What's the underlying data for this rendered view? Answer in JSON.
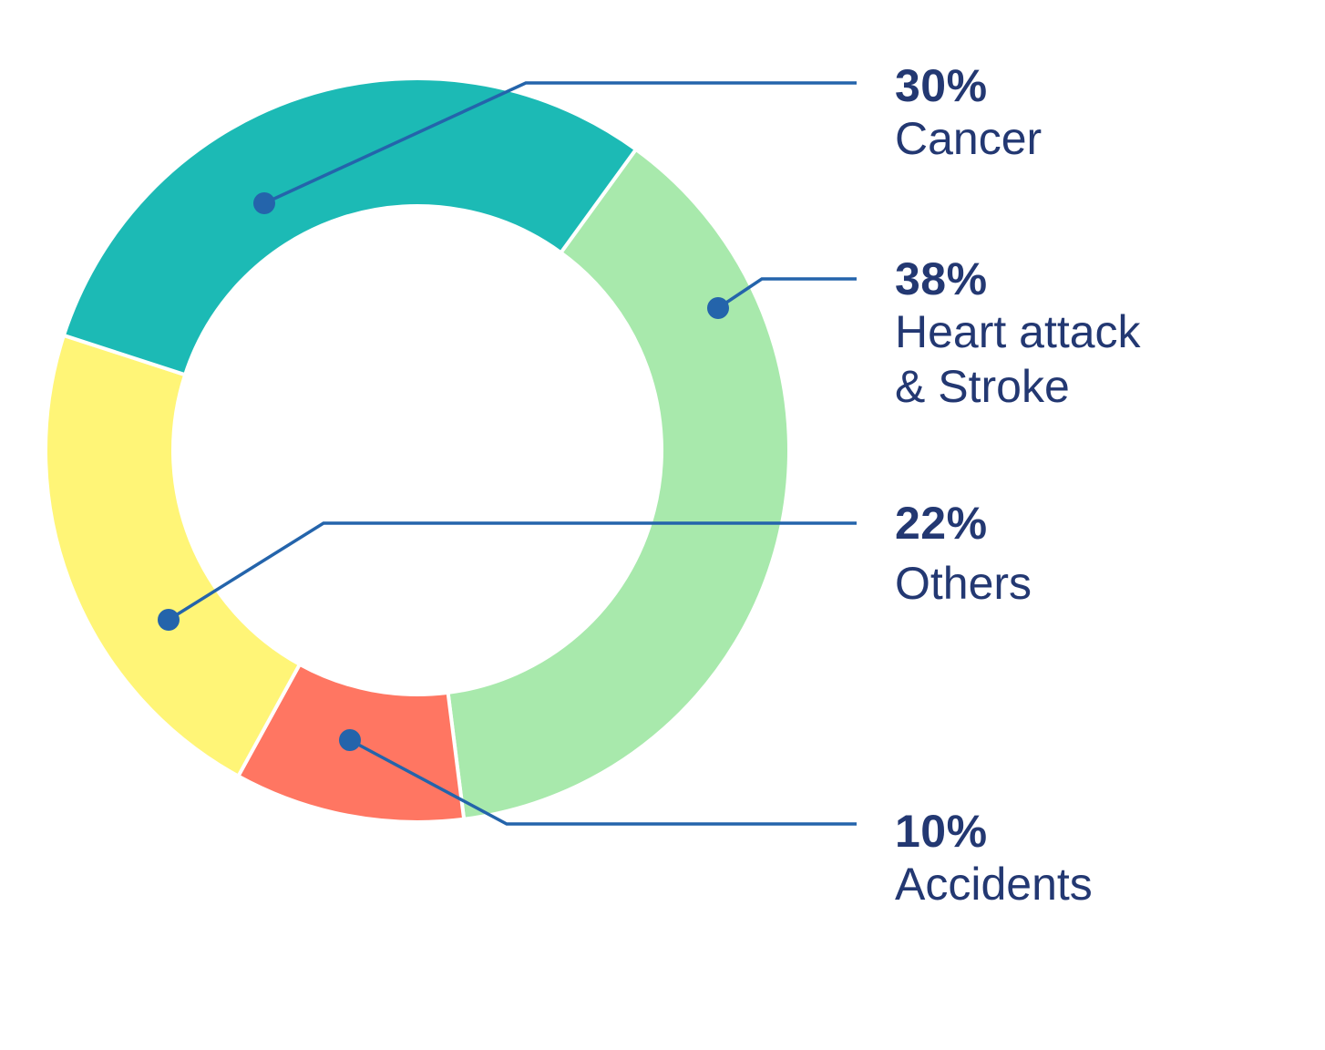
{
  "chart_data": {
    "type": "pie",
    "variant": "donut",
    "title": "",
    "categories": [
      "Cancer",
      "Heart attack & Stroke",
      "Others",
      "Accidents"
    ],
    "values": [
      30,
      38,
      22,
      10
    ],
    "unit": "%",
    "colors": {
      "Cancer": "#1cbab5",
      "Heart attack & Stroke": "#a8e9ac",
      "Others": "#fff577",
      "Accidents": "#ff7662"
    },
    "legend_position": "right",
    "annotations": "callout leader lines from each segment to its label"
  },
  "labels": [
    {
      "pct": "30%",
      "name": "Cancer"
    },
    {
      "pct": "38%",
      "name": "Heart attack\n& Stroke"
    },
    {
      "pct": "22%",
      "name": "Others"
    },
    {
      "pct": "10%",
      "name": "Accidents"
    }
  ],
  "style": {
    "text_color": "#233872",
    "leader_color": "#2464ab"
  }
}
